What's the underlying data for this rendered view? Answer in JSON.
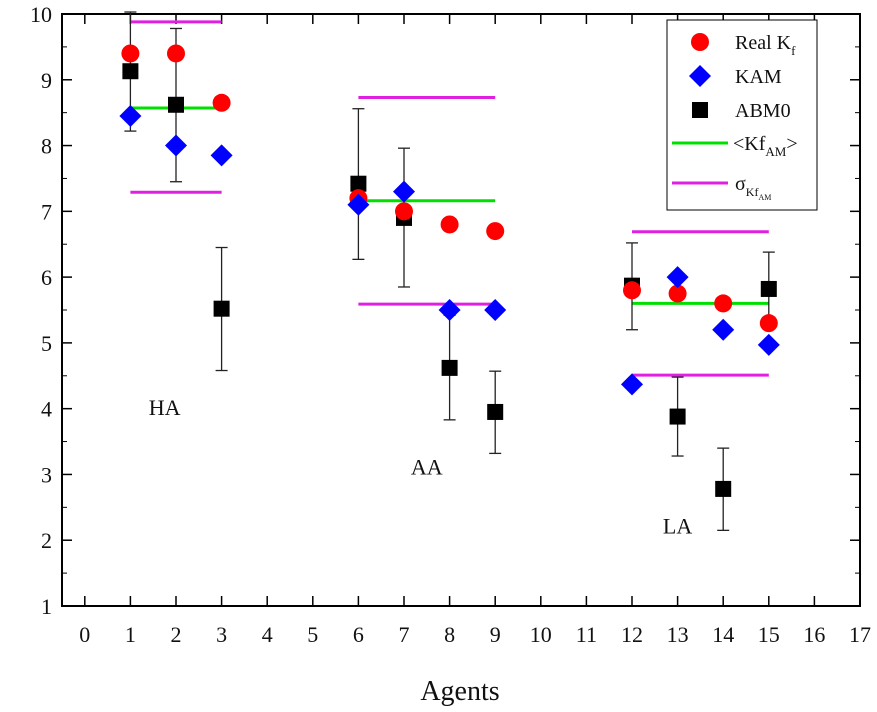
{
  "chart_data": {
    "type": "scatter",
    "xlabel": "Agents",
    "ylabel": "",
    "xlim": [
      -0.5,
      17
    ],
    "ylim": [
      1,
      10
    ],
    "xticks": [
      0,
      1,
      2,
      3,
      4,
      5,
      6,
      7,
      8,
      9,
      10,
      11,
      12,
      13,
      14,
      15,
      16,
      17
    ],
    "yticks": [
      1,
      2,
      3,
      4,
      5,
      6,
      7,
      8,
      9,
      10
    ],
    "grid": false,
    "legend_position": "top-right",
    "series": [
      {
        "name": "Real K_f",
        "marker": "circle",
        "color": "#ff0000",
        "points": [
          {
            "x": 1,
            "y": 9.4
          },
          {
            "x": 2,
            "y": 9.4
          },
          {
            "x": 3,
            "y": 8.65
          },
          {
            "x": 6,
            "y": 7.2
          },
          {
            "x": 7,
            "y": 7.0
          },
          {
            "x": 8,
            "y": 6.8
          },
          {
            "x": 9,
            "y": 6.7
          },
          {
            "x": 12,
            "y": 5.8
          },
          {
            "x": 13,
            "y": 5.75
          },
          {
            "x": 14,
            "y": 5.6
          },
          {
            "x": 15,
            "y": 5.3
          }
        ]
      },
      {
        "name": "KAM",
        "marker": "diamond",
        "color": "#0000ff",
        "points": [
          {
            "x": 1,
            "y": 8.45
          },
          {
            "x": 2,
            "y": 8.0
          },
          {
            "x": 3,
            "y": 7.85
          },
          {
            "x": 6,
            "y": 7.1
          },
          {
            "x": 7,
            "y": 7.3
          },
          {
            "x": 8,
            "y": 5.5
          },
          {
            "x": 9,
            "y": 5.5
          },
          {
            "x": 12,
            "y": 4.37
          },
          {
            "x": 13,
            "y": 6.0
          },
          {
            "x": 14,
            "y": 5.2
          },
          {
            "x": 15,
            "y": 4.97
          }
        ]
      },
      {
        "name": "ABM0",
        "marker": "square",
        "color": "#000000",
        "points": [
          {
            "x": 1,
            "y": 9.13,
            "err_low": 8.22,
            "err_high": 10.03
          },
          {
            "x": 2,
            "y": 8.62,
            "err_low": 7.45,
            "err_high": 9.78
          },
          {
            "x": 3,
            "y": 5.52,
            "err_low": 4.58,
            "err_high": 6.45
          },
          {
            "x": 6,
            "y": 7.42,
            "err_low": 6.27,
            "err_high": 8.56
          },
          {
            "x": 7,
            "y": 6.9,
            "err_low": 5.85,
            "err_high": 7.96
          },
          {
            "x": 8,
            "y": 4.62,
            "err_low": 3.83,
            "err_high": 5.42
          },
          {
            "x": 9,
            "y": 3.95,
            "err_low": 3.32,
            "err_high": 4.57
          },
          {
            "x": 12,
            "y": 5.87,
            "err_low": 5.2,
            "err_high": 6.52
          },
          {
            "x": 13,
            "y": 3.88,
            "err_low": 3.28,
            "err_high": 4.48
          },
          {
            "x": 14,
            "y": 2.78,
            "err_low": 2.15,
            "err_high": 3.4
          },
          {
            "x": 15,
            "y": 5.82,
            "err_low": 5.25,
            "err_high": 6.38
          }
        ]
      }
    ],
    "group_lines": [
      {
        "series": "<Kf_AM>",
        "color": "#00e000",
        "segments": [
          {
            "x1": 1,
            "x2": 3,
            "y": 8.57
          },
          {
            "x1": 6,
            "x2": 9,
            "y": 7.16
          },
          {
            "x1": 12,
            "x2": 15,
            "y": 5.6
          }
        ]
      },
      {
        "series": "σ_Kf_AM",
        "color": "#e020e0",
        "segments": [
          {
            "x1": 1,
            "x2": 3,
            "y": 9.88
          },
          {
            "x1": 1,
            "x2": 3,
            "y": 7.29
          },
          {
            "x1": 6,
            "x2": 9,
            "y": 8.73
          },
          {
            "x1": 6,
            "x2": 9,
            "y": 5.59
          },
          {
            "x1": 12,
            "x2": 15,
            "y": 6.69
          },
          {
            "x1": 12,
            "x2": 15,
            "y": 4.51
          }
        ]
      }
    ],
    "annotations": [
      {
        "text": "HA",
        "x": 1.75,
        "y": 3.9
      },
      {
        "text": "AA",
        "x": 7.5,
        "y": 3.0
      },
      {
        "text": "LA",
        "x": 13.0,
        "y": 2.1
      }
    ],
    "legend": {
      "real_main": "Real K",
      "real_sub": "f",
      "kam": "KAM",
      "abm0": "ABM0",
      "mean_open": "<Kf",
      "mean_sub": "AM",
      "mean_close": ">",
      "sigma_main": "σ",
      "sigma_sub": "Kf",
      "sigma_subsub": "AM"
    }
  }
}
